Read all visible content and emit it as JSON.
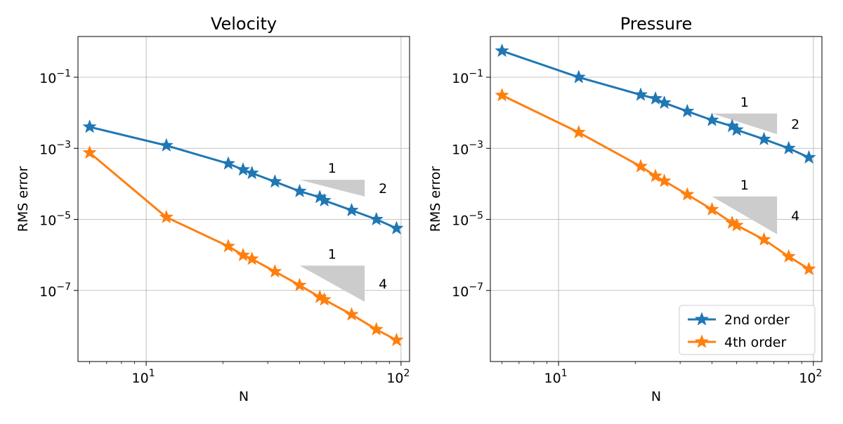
{
  "chart_data": [
    {
      "type": "line",
      "scale": "log-log",
      "title": "Velocity",
      "xlabel": "N",
      "ylabel": "RMS error",
      "xlim": [
        5.4,
        108
      ],
      "ylim": [
        1e-09,
        1.4
      ],
      "x_ticks": [
        {
          "value": 10,
          "base": "10",
          "exp": "1"
        },
        {
          "value": 100,
          "base": "10",
          "exp": "2"
        }
      ],
      "y_ticks": [
        {
          "value": 0.1,
          "base": "10",
          "exp": "−1"
        },
        {
          "value": 0.001,
          "base": "10",
          "exp": "−3"
        },
        {
          "value": 1e-05,
          "base": "10",
          "exp": "−5"
        },
        {
          "value": 1e-07,
          "base": "10",
          "exp": "−7"
        }
      ],
      "grid": true,
      "series": [
        {
          "name": "2nd order",
          "color": "#1f77b4",
          "marker": "star",
          "x": [
            6,
            12,
            21,
            24,
            26,
            32,
            40,
            48,
            50,
            64,
            80,
            96
          ],
          "y": [
            0.004,
            0.0012,
            0.00037,
            0.00025,
            0.0002,
            0.000115,
            6.2e-05,
            4.2e-05,
            3.4e-05,
            1.8e-05,
            1e-05,
            5.6e-06
          ]
        },
        {
          "name": "4th order",
          "color": "#ff7f0e",
          "marker": "star",
          "x": [
            6,
            12,
            21,
            24,
            26,
            32,
            40,
            48,
            50,
            64,
            80,
            96
          ],
          "y": [
            0.00075,
            1.15e-05,
            1.75e-06,
            9.8e-07,
            7.7e-07,
            3.4e-07,
            1.4e-07,
            6.5e-08,
            5.5e-08,
            2.1e-08,
            8e-09,
            4e-09
          ]
        }
      ],
      "slope_triangles": [
        {
          "run_label": "1",
          "rise_label": "2",
          "x_start": 40,
          "x_end": 72,
          "y_top": 0.00013,
          "y_bottom": 4.4e-05
        },
        {
          "run_label": "1",
          "rise_label": "4",
          "x_start": 40,
          "x_end": 72,
          "y_top": 5e-07,
          "y_bottom": 4.8e-08
        }
      ]
    },
    {
      "type": "line",
      "scale": "log-log",
      "title": "Pressure",
      "xlabel": "N",
      "ylabel": "RMS error",
      "xlim": [
        5.4,
        108
      ],
      "ylim": [
        1e-09,
        1.4
      ],
      "x_ticks": [
        {
          "value": 10,
          "base": "10",
          "exp": "1"
        },
        {
          "value": 100,
          "base": "10",
          "exp": "2"
        }
      ],
      "y_ticks": [
        {
          "value": 0.1,
          "base": "10",
          "exp": "−1"
        },
        {
          "value": 0.001,
          "base": "10",
          "exp": "−3"
        },
        {
          "value": 1e-05,
          "base": "10",
          "exp": "−5"
        },
        {
          "value": 1e-07,
          "base": "10",
          "exp": "−7"
        }
      ],
      "grid": true,
      "legend": {
        "position": "lower-right",
        "entries": [
          "2nd order",
          "4th order"
        ]
      },
      "series": [
        {
          "name": "2nd order",
          "color": "#1f77b4",
          "marker": "star",
          "x": [
            6,
            12,
            21,
            24,
            26,
            32,
            40,
            48,
            50,
            64,
            80,
            96
          ],
          "y": [
            0.55,
            0.1,
            0.032,
            0.025,
            0.019,
            0.011,
            0.0062,
            0.0042,
            0.0033,
            0.0018,
            0.001,
            0.00055
          ]
        },
        {
          "name": "4th order",
          "color": "#ff7f0e",
          "marker": "star",
          "x": [
            6,
            12,
            21,
            24,
            26,
            32,
            40,
            48,
            50,
            64,
            80,
            96
          ],
          "y": [
            0.031,
            0.0028,
            0.00031,
            0.000165,
            0.00012,
            5e-05,
            1.9e-05,
            8e-06,
            6.8e-06,
            2.7e-06,
            9e-07,
            4e-07
          ]
        }
      ],
      "slope_triangles": [
        {
          "run_label": "1",
          "rise_label": "2",
          "x_start": 40,
          "x_end": 72,
          "y_top": 0.0095,
          "y_bottom": 0.0025
        },
        {
          "run_label": "1",
          "rise_label": "4",
          "x_start": 40,
          "x_end": 72,
          "y_top": 4.4e-05,
          "y_bottom": 3.8e-06
        }
      ]
    }
  ]
}
